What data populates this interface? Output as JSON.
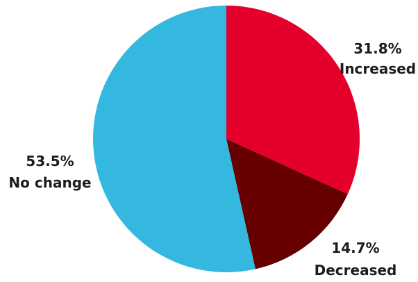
{
  "chart_data": {
    "type": "pie",
    "start_angle_deg": 0,
    "direction": "clockwise",
    "slices": [
      {
        "label": "Increased",
        "value": 31.8,
        "value_text": "31.8%",
        "color": "#e4002b"
      },
      {
        "label": "Decreased",
        "value": 14.7,
        "value_text": "14.7%",
        "color": "#660000"
      },
      {
        "label": "No change",
        "value": 53.5,
        "value_text": "53.5%",
        "color": "#34b8e0"
      }
    ]
  }
}
